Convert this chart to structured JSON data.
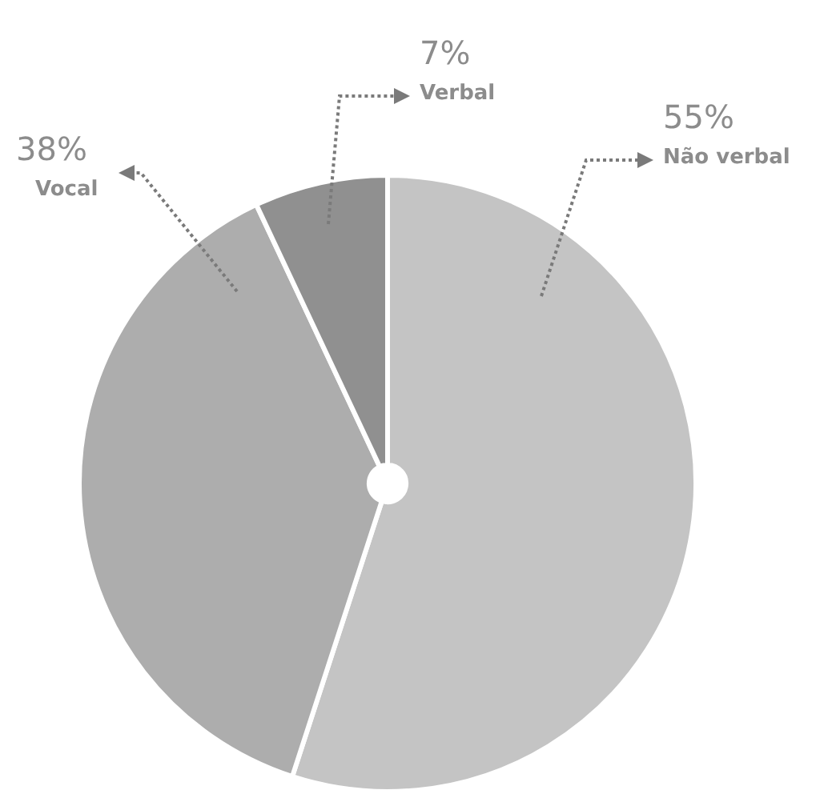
{
  "chart_data": {
    "type": "pie",
    "categories": [
      "Não verbal",
      "Vocal",
      "Verbal"
    ],
    "values": [
      55,
      38,
      7
    ],
    "value_labels": [
      "55%",
      "38%",
      "7%"
    ],
    "colors": [
      "#c4c4c4",
      "#adadad",
      "#909090"
    ],
    "legend": false
  }
}
